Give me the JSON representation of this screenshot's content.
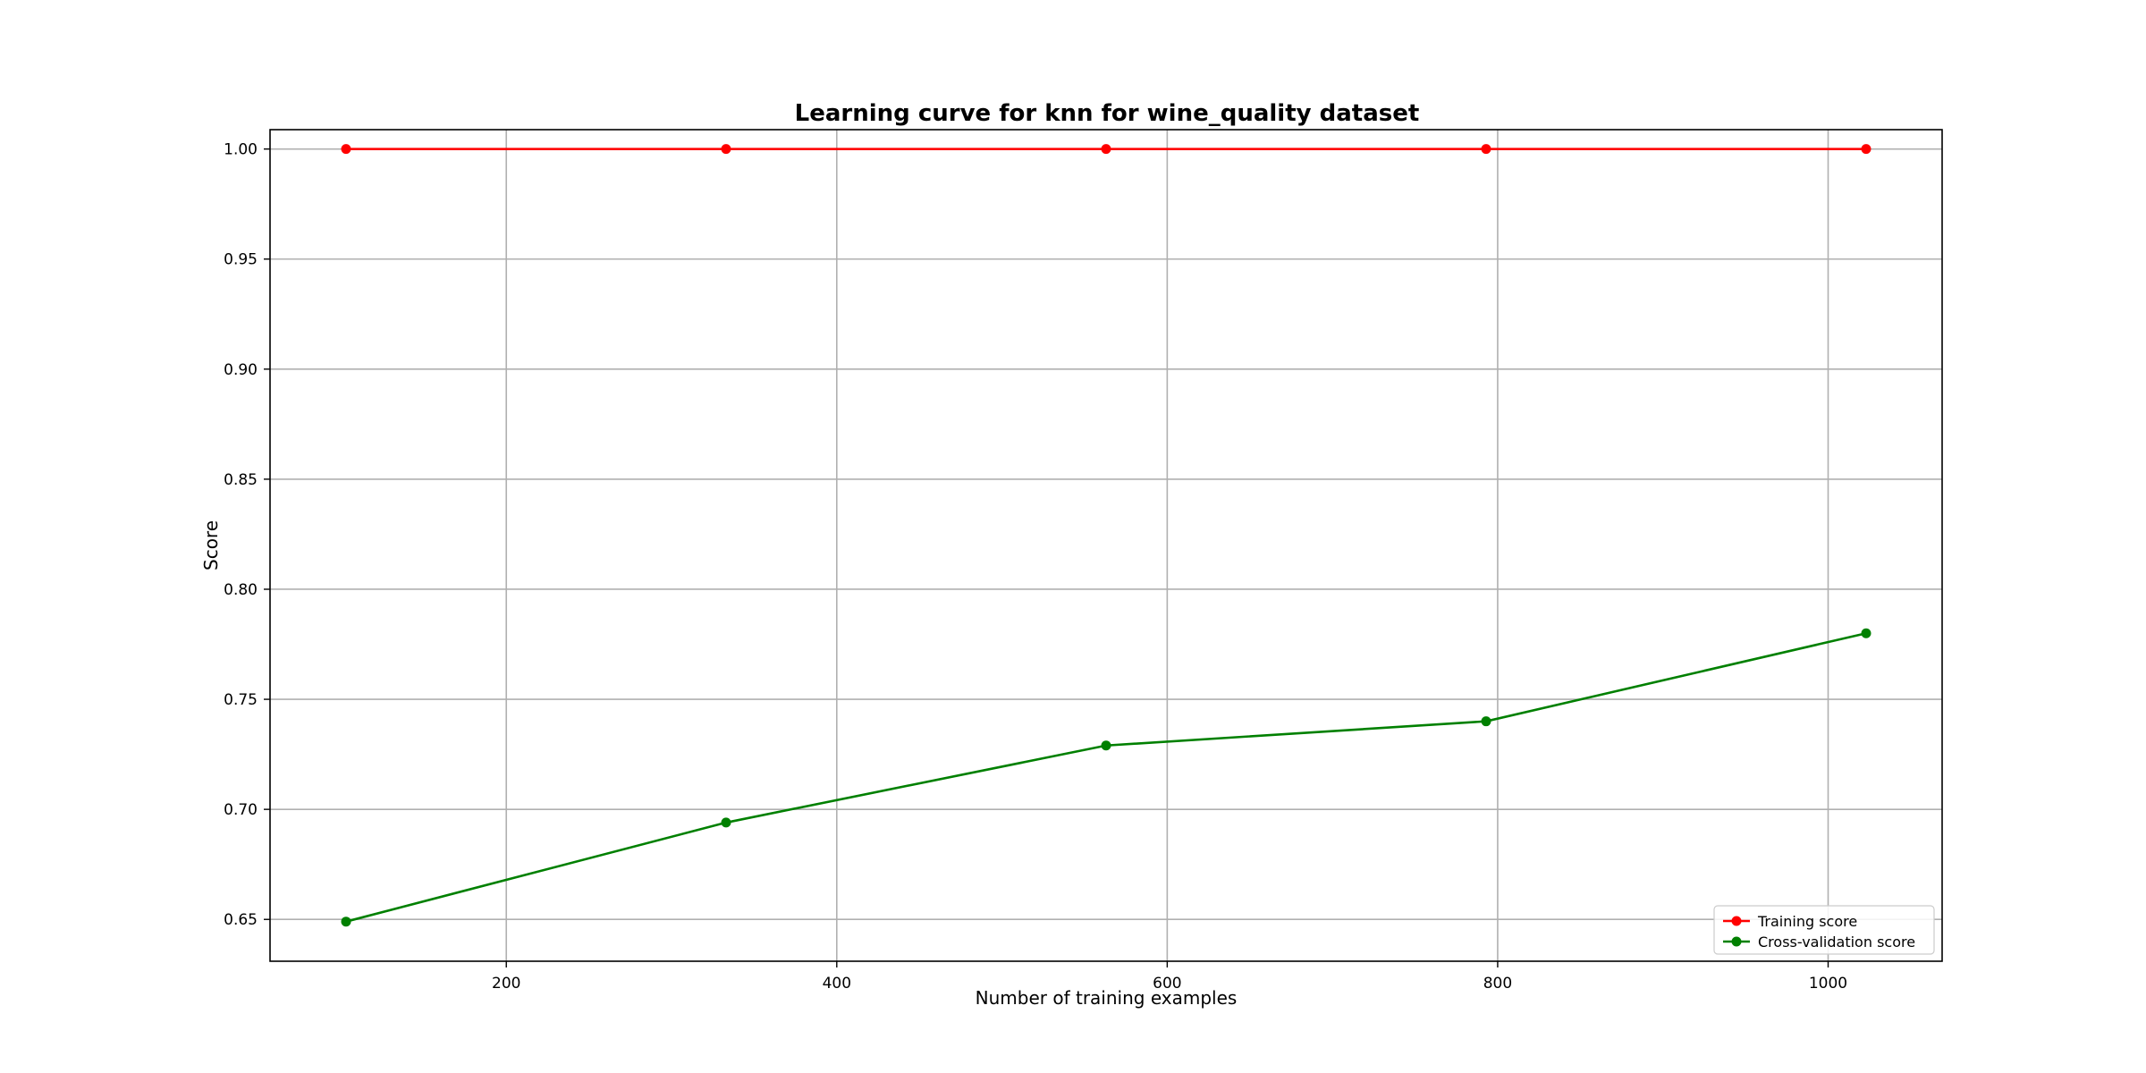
{
  "chart_data": {
    "type": "line",
    "title": "Learning curve for knn for wine_quality dataset",
    "xlabel": "Number of training examples",
    "ylabel": "Score",
    "x": [
      103,
      333,
      563,
      793,
      1023
    ],
    "series": [
      {
        "name": "Training score",
        "color": "#ff0000",
        "values": [
          1.0,
          1.0,
          1.0,
          1.0,
          1.0
        ]
      },
      {
        "name": "Cross-validation score",
        "color": "#008000",
        "values": [
          0.649,
          0.694,
          0.729,
          0.74,
          0.78
        ]
      }
    ],
    "xlim": [
      57,
      1069
    ],
    "ylim": [
      0.631,
      1.0088
    ],
    "xticks": [
      {
        "value": 200,
        "label": "200"
      },
      {
        "value": 400,
        "label": "400"
      },
      {
        "value": 600,
        "label": "600"
      },
      {
        "value": 800,
        "label": "800"
      },
      {
        "value": 1000,
        "label": "1000"
      }
    ],
    "yticks": [
      {
        "value": 0.65,
        "label": "0.65"
      },
      {
        "value": 0.7,
        "label": "0.70"
      },
      {
        "value": 0.75,
        "label": "0.75"
      },
      {
        "value": 0.8,
        "label": "0.80"
      },
      {
        "value": 0.85,
        "label": "0.85"
      },
      {
        "value": 0.9,
        "label": "0.90"
      },
      {
        "value": 0.95,
        "label": "0.95"
      },
      {
        "value": 1.0,
        "label": "1.00"
      }
    ],
    "grid": true,
    "legend_position": "lower-right"
  }
}
